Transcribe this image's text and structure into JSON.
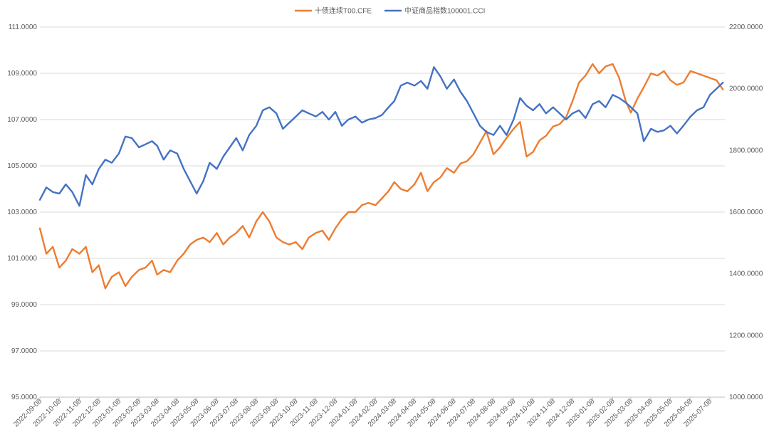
{
  "chart_data": {
    "type": "line",
    "title": "",
    "xlabel": "",
    "ylabel": "",
    "legend_position": "top",
    "grid": true,
    "x_tick_labels": [
      "2022-09-08",
      "2022-10-08",
      "2022-11-08",
      "2022-12-08",
      "2023-01-08",
      "2023-02-08",
      "2023-03-08",
      "2023-04-08",
      "2023-05-08",
      "2023-06-08",
      "2023-07-08",
      "2023-08-08",
      "2023-09-08",
      "2023-10-08",
      "2023-11-08",
      "2023-12-08",
      "2024-01-08",
      "2024-02-08",
      "2024-03-08",
      "2024-04-08",
      "2024-05-08",
      "2024-06-08",
      "2024-07-08",
      "2024-08-08",
      "2024-09-08",
      "2024-10-08",
      "2024-11-08",
      "2024-12-08",
      "2025-01-08",
      "2025-02-08",
      "2025-03-08",
      "2025-04-08",
      "2025-05-08",
      "2025-06-08",
      "2025-07-08"
    ],
    "y_left": {
      "range": [
        95,
        111
      ],
      "ticks": [
        "95.0000",
        "97.0000",
        "99.0000",
        "101.0000",
        "103.0000",
        "105.0000",
        "107.0000",
        "109.0000",
        "111.0000"
      ]
    },
    "y_right": {
      "range": [
        1000,
        2200
      ],
      "ticks": [
        "1000.0000",
        "1200.0000",
        "1400.0000",
        "1600.0000",
        "1800.0000",
        "2000.0000",
        "2200.0000"
      ]
    },
    "series": [
      {
        "name": "十债连续T00.CFE",
        "axis": "left",
        "color": "#ED7D31",
        "points": [
          [
            "2022-09-08",
            102.3
          ],
          [
            "2022-09-18",
            101.2
          ],
          [
            "2022-09-28",
            101.5
          ],
          [
            "2022-10-08",
            100.6
          ],
          [
            "2022-10-18",
            100.9
          ],
          [
            "2022-10-28",
            101.4
          ],
          [
            "2022-11-08",
            101.2
          ],
          [
            "2022-11-18",
            101.5
          ],
          [
            "2022-11-28",
            100.4
          ],
          [
            "2022-12-08",
            100.7
          ],
          [
            "2022-12-18",
            99.7
          ],
          [
            "2022-12-28",
            100.2
          ],
          [
            "2023-01-08",
            100.4
          ],
          [
            "2023-01-18",
            99.8
          ],
          [
            "2023-01-28",
            100.2
          ],
          [
            "2023-02-08",
            100.5
          ],
          [
            "2023-02-18",
            100.6
          ],
          [
            "2023-02-28",
            100.9
          ],
          [
            "2023-03-08",
            100.3
          ],
          [
            "2023-03-18",
            100.5
          ],
          [
            "2023-03-28",
            100.4
          ],
          [
            "2023-04-08",
            100.9
          ],
          [
            "2023-04-18",
            101.2
          ],
          [
            "2023-04-28",
            101.6
          ],
          [
            "2023-05-08",
            101.8
          ],
          [
            "2023-05-18",
            101.9
          ],
          [
            "2023-05-28",
            101.7
          ],
          [
            "2023-06-08",
            102.1
          ],
          [
            "2023-06-18",
            101.6
          ],
          [
            "2023-06-28",
            101.9
          ],
          [
            "2023-07-08",
            102.1
          ],
          [
            "2023-07-18",
            102.4
          ],
          [
            "2023-07-28",
            101.9
          ],
          [
            "2023-08-08",
            102.6
          ],
          [
            "2023-08-18",
            103.0
          ],
          [
            "2023-08-28",
            102.6
          ],
          [
            "2023-09-08",
            101.9
          ],
          [
            "2023-09-18",
            101.7
          ],
          [
            "2023-09-28",
            101.6
          ],
          [
            "2023-10-08",
            101.7
          ],
          [
            "2023-10-18",
            101.4
          ],
          [
            "2023-10-28",
            101.9
          ],
          [
            "2023-11-08",
            102.1
          ],
          [
            "2023-11-18",
            102.2
          ],
          [
            "2023-11-28",
            101.8
          ],
          [
            "2023-12-08",
            102.3
          ],
          [
            "2023-12-18",
            102.7
          ],
          [
            "2023-12-28",
            103.0
          ],
          [
            "2024-01-08",
            103.0
          ],
          [
            "2024-01-18",
            103.3
          ],
          [
            "2024-01-28",
            103.4
          ],
          [
            "2024-02-08",
            103.3
          ],
          [
            "2024-02-18",
            103.6
          ],
          [
            "2024-02-28",
            103.9
          ],
          [
            "2024-03-08",
            104.3
          ],
          [
            "2024-03-18",
            104.0
          ],
          [
            "2024-03-28",
            103.9
          ],
          [
            "2024-04-08",
            104.2
          ],
          [
            "2024-04-18",
            104.7
          ],
          [
            "2024-04-28",
            103.9
          ],
          [
            "2024-05-08",
            104.3
          ],
          [
            "2024-05-18",
            104.5
          ],
          [
            "2024-05-28",
            104.9
          ],
          [
            "2024-06-08",
            104.7
          ],
          [
            "2024-06-18",
            105.1
          ],
          [
            "2024-06-28",
            105.2
          ],
          [
            "2024-07-08",
            105.5
          ],
          [
            "2024-07-18",
            106.0
          ],
          [
            "2024-07-28",
            106.5
          ],
          [
            "2024-08-08",
            105.5
          ],
          [
            "2024-08-18",
            105.8
          ],
          [
            "2024-08-28",
            106.2
          ],
          [
            "2024-09-08",
            106.6
          ],
          [
            "2024-09-18",
            106.9
          ],
          [
            "2024-09-28",
            105.4
          ],
          [
            "2024-10-08",
            105.6
          ],
          [
            "2024-10-18",
            106.1
          ],
          [
            "2024-10-28",
            106.3
          ],
          [
            "2024-11-08",
            106.7
          ],
          [
            "2024-11-18",
            106.8
          ],
          [
            "2024-11-28",
            107.1
          ],
          [
            "2024-12-08",
            107.8
          ],
          [
            "2024-12-18",
            108.6
          ],
          [
            "2024-12-28",
            108.9
          ],
          [
            "2025-01-08",
            109.4
          ],
          [
            "2025-01-18",
            109.0
          ],
          [
            "2025-01-28",
            109.3
          ],
          [
            "2025-02-08",
            109.4
          ],
          [
            "2025-02-18",
            108.8
          ],
          [
            "2025-02-28",
            107.8
          ],
          [
            "2025-03-08",
            107.3
          ],
          [
            "2025-03-18",
            107.9
          ],
          [
            "2025-03-28",
            108.4
          ],
          [
            "2025-04-08",
            109.0
          ],
          [
            "2025-04-18",
            108.9
          ],
          [
            "2025-04-28",
            109.1
          ],
          [
            "2025-05-08",
            108.7
          ],
          [
            "2025-05-18",
            108.5
          ],
          [
            "2025-05-28",
            108.6
          ],
          [
            "2025-06-08",
            109.1
          ],
          [
            "2025-06-18",
            109.0
          ],
          [
            "2025-06-28",
            108.9
          ],
          [
            "2025-07-08",
            108.8
          ],
          [
            "2025-07-18",
            108.7
          ],
          [
            "2025-07-28",
            108.3
          ]
        ]
      },
      {
        "name": "中证商品指数100001.CCI",
        "axis": "right",
        "color": "#4472C4",
        "points": [
          [
            "2022-09-08",
            1640
          ],
          [
            "2022-09-18",
            1680
          ],
          [
            "2022-09-28",
            1665
          ],
          [
            "2022-10-08",
            1660
          ],
          [
            "2022-10-18",
            1690
          ],
          [
            "2022-10-28",
            1665
          ],
          [
            "2022-11-08",
            1620
          ],
          [
            "2022-11-18",
            1720
          ],
          [
            "2022-11-28",
            1690
          ],
          [
            "2022-12-08",
            1740
          ],
          [
            "2022-12-18",
            1770
          ],
          [
            "2022-12-28",
            1760
          ],
          [
            "2023-01-08",
            1790
          ],
          [
            "2023-01-18",
            1845
          ],
          [
            "2023-01-28",
            1840
          ],
          [
            "2023-02-08",
            1810
          ],
          [
            "2023-02-18",
            1820
          ],
          [
            "2023-02-28",
            1830
          ],
          [
            "2023-03-08",
            1815
          ],
          [
            "2023-03-18",
            1770
          ],
          [
            "2023-03-28",
            1800
          ],
          [
            "2023-04-08",
            1790
          ],
          [
            "2023-04-18",
            1740
          ],
          [
            "2023-04-28",
            1700
          ],
          [
            "2023-05-08",
            1660
          ],
          [
            "2023-05-18",
            1700
          ],
          [
            "2023-05-28",
            1760
          ],
          [
            "2023-06-08",
            1740
          ],
          [
            "2023-06-18",
            1780
          ],
          [
            "2023-06-28",
            1810
          ],
          [
            "2023-07-08",
            1840
          ],
          [
            "2023-07-18",
            1800
          ],
          [
            "2023-07-28",
            1850
          ],
          [
            "2023-08-08",
            1880
          ],
          [
            "2023-08-18",
            1930
          ],
          [
            "2023-08-28",
            1940
          ],
          [
            "2023-09-08",
            1920
          ],
          [
            "2023-09-18",
            1870
          ],
          [
            "2023-09-28",
            1890
          ],
          [
            "2023-10-08",
            1910
          ],
          [
            "2023-10-18",
            1930
          ],
          [
            "2023-10-28",
            1920
          ],
          [
            "2023-11-08",
            1910
          ],
          [
            "2023-11-18",
            1925
          ],
          [
            "2023-11-28",
            1900
          ],
          [
            "2023-12-08",
            1925
          ],
          [
            "2023-12-18",
            1880
          ],
          [
            "2023-12-28",
            1900
          ],
          [
            "2024-01-08",
            1910
          ],
          [
            "2024-01-18",
            1890
          ],
          [
            "2024-01-28",
            1900
          ],
          [
            "2024-02-08",
            1905
          ],
          [
            "2024-02-18",
            1915
          ],
          [
            "2024-02-28",
            1940
          ],
          [
            "2024-03-08",
            1960
          ],
          [
            "2024-03-18",
            2010
          ],
          [
            "2024-03-28",
            2020
          ],
          [
            "2024-04-08",
            2010
          ],
          [
            "2024-04-18",
            2025
          ],
          [
            "2024-04-28",
            2000
          ],
          [
            "2024-05-08",
            2070
          ],
          [
            "2024-05-18",
            2040
          ],
          [
            "2024-05-28",
            2000
          ],
          [
            "2024-06-08",
            2030
          ],
          [
            "2024-06-18",
            1990
          ],
          [
            "2024-06-28",
            1960
          ],
          [
            "2024-07-08",
            1920
          ],
          [
            "2024-07-18",
            1880
          ],
          [
            "2024-07-28",
            1860
          ],
          [
            "2024-08-08",
            1850
          ],
          [
            "2024-08-18",
            1880
          ],
          [
            "2024-08-28",
            1850
          ],
          [
            "2024-09-08",
            1900
          ],
          [
            "2024-09-18",
            1970
          ],
          [
            "2024-09-28",
            1945
          ],
          [
            "2024-10-08",
            1930
          ],
          [
            "2024-10-18",
            1950
          ],
          [
            "2024-10-28",
            1920
          ],
          [
            "2024-11-08",
            1940
          ],
          [
            "2024-11-18",
            1920
          ],
          [
            "2024-11-28",
            1900
          ],
          [
            "2024-12-08",
            1920
          ],
          [
            "2024-12-18",
            1930
          ],
          [
            "2024-12-28",
            1905
          ],
          [
            "2025-01-08",
            1950
          ],
          [
            "2025-01-18",
            1960
          ],
          [
            "2025-01-28",
            1940
          ],
          [
            "2025-02-08",
            1980
          ],
          [
            "2025-02-18",
            1970
          ],
          [
            "2025-02-28",
            1955
          ],
          [
            "2025-03-08",
            1940
          ],
          [
            "2025-03-18",
            1920
          ],
          [
            "2025-03-28",
            1830
          ],
          [
            "2025-04-08",
            1870
          ],
          [
            "2025-04-18",
            1860
          ],
          [
            "2025-04-28",
            1865
          ],
          [
            "2025-05-08",
            1880
          ],
          [
            "2025-05-18",
            1855
          ],
          [
            "2025-05-28",
            1880
          ],
          [
            "2025-06-08",
            1910
          ],
          [
            "2025-06-18",
            1930
          ],
          [
            "2025-06-28",
            1940
          ],
          [
            "2025-07-08",
            1980
          ],
          [
            "2025-07-18",
            2000
          ],
          [
            "2025-07-28",
            2020
          ]
        ]
      }
    ]
  }
}
